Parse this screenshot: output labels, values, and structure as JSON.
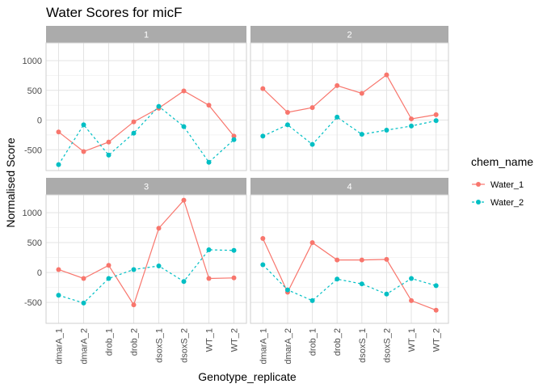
{
  "chart_data": {
    "type": "line",
    "title": "Water Scores for micF",
    "xlabel": "Genotype_replicate",
    "ylabel": "Normalised Score",
    "ylim": [
      -850,
      1300
    ],
    "y_ticks": [
      -500,
      0,
      500,
      1000
    ],
    "grid": true,
    "legend_position": "right",
    "legend_title": "chem_name",
    "categories": [
      "dmarA_1",
      "dmarA_2",
      "drob_1",
      "drob_2",
      "dsoxS_1",
      "dsoxS_2",
      "WT_1",
      "WT_2"
    ],
    "series_styles": [
      {
        "name": "Water_1",
        "color": "#F8766D",
        "dash": "solid"
      },
      {
        "name": "Water_2",
        "color": "#00BFC4",
        "dash": "dashed"
      }
    ],
    "panels": [
      {
        "label": "1",
        "series": [
          {
            "name": "Water_1",
            "values": [
              -200,
              -530,
              -370,
              -30,
              200,
              490,
              250,
              -270
            ]
          },
          {
            "name": "Water_2",
            "values": [
              -750,
              -80,
              -590,
              -220,
              230,
              -110,
              -710,
              -330
            ]
          }
        ]
      },
      {
        "label": "2",
        "series": [
          {
            "name": "Water_1",
            "values": [
              530,
              130,
              210,
              580,
              450,
              760,
              20,
              90
            ]
          },
          {
            "name": "Water_2",
            "values": [
              -270,
              -80,
              -410,
              50,
              -240,
              -170,
              -100,
              -10
            ]
          }
        ]
      },
      {
        "label": "3",
        "series": [
          {
            "name": "Water_1",
            "values": [
              50,
              -100,
              120,
              -540,
              740,
              1210,
              -100,
              -90
            ]
          },
          {
            "name": "Water_2",
            "values": [
              -380,
              -510,
              -100,
              50,
              110,
              -150,
              380,
              370
            ]
          }
        ]
      },
      {
        "label": "4",
        "series": [
          {
            "name": "Water_1",
            "values": [
              570,
              -330,
              500,
              210,
              210,
              220,
              -470,
              -630
            ]
          },
          {
            "name": "Water_2",
            "values": [
              130,
              -290,
              -470,
              -110,
              -190,
              -360,
              -100,
              -220
            ]
          }
        ]
      }
    ]
  }
}
